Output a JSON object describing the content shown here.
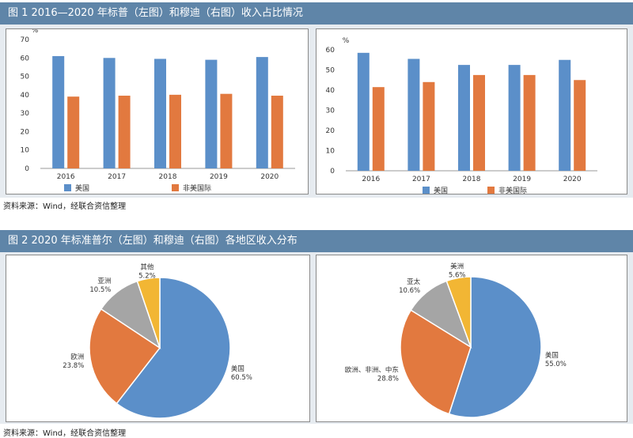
{
  "figure1": {
    "title": "图 1   2016—2020 年标普（左图）和穆迪（右图）收入占比情况",
    "source": "资料来源：Wind，经联合资信整理"
  },
  "figure2": {
    "title": "图 2   2020 年标准普尔（左图）和穆迪（右图）各地区收入分布",
    "source": "资料来源：Wind，经联合资信整理"
  },
  "colors": {
    "blue": "#5b8fc9",
    "orange": "#e2793f",
    "gray": "#a5a5a5",
    "yellow": "#f2b634"
  },
  "chart_data": [
    {
      "type": "bar",
      "unit": "%",
      "categories": [
        "2016",
        "2017",
        "2018",
        "2019",
        "2020"
      ],
      "series": [
        {
          "name": "美国",
          "color": "#5b8fc9",
          "values": [
            61,
            60,
            59.5,
            59,
            60.5
          ]
        },
        {
          "name": "非美国际",
          "color": "#e2793f",
          "values": [
            39,
            39.5,
            40,
            40.5,
            39.5
          ]
        }
      ],
      "ylim": [
        0,
        70
      ],
      "yticks": [
        0,
        10,
        20,
        30,
        40,
        50,
        60,
        70
      ],
      "legend": "bottom"
    },
    {
      "type": "bar",
      "unit": "%",
      "categories": [
        "2016",
        "2017",
        "2018",
        "2019",
        "2020"
      ],
      "series": [
        {
          "name": "美国",
          "color": "#5b8fc9",
          "values": [
            58.5,
            55.5,
            52.5,
            52.5,
            55
          ]
        },
        {
          "name": "非美国际",
          "color": "#e2793f",
          "values": [
            41.5,
            44,
            47.5,
            47.5,
            45
          ]
        }
      ],
      "ylim": [
        0,
        60
      ],
      "yticks": [
        0,
        10,
        20,
        30,
        40,
        50,
        60
      ],
      "legend": "bottom"
    },
    {
      "type": "pie",
      "slices": [
        {
          "label": "美国",
          "value": 60.5,
          "text": "60.5%",
          "color": "#5b8fc9"
        },
        {
          "label": "欧洲",
          "value": 23.8,
          "text": "23.8%",
          "color": "#e2793f"
        },
        {
          "label": "亚洲",
          "value": 10.5,
          "text": "10.5%",
          "color": "#a5a5a5"
        },
        {
          "label": "其他",
          "value": 5.2,
          "text": "5.2%",
          "color": "#f2b634"
        }
      ]
    },
    {
      "type": "pie",
      "slices": [
        {
          "label": "美国",
          "value": 55.0,
          "text": "55.0%",
          "color": "#5b8fc9"
        },
        {
          "label": "欧洲、非洲、中东",
          "value": 28.8,
          "text": "28.8%",
          "color": "#e2793f"
        },
        {
          "label": "亚太",
          "value": 10.6,
          "text": "10.6%",
          "color": "#a5a5a5"
        },
        {
          "label": "美洲",
          "value": 5.6,
          "text": "5.6%",
          "color": "#f2b634"
        }
      ]
    }
  ]
}
